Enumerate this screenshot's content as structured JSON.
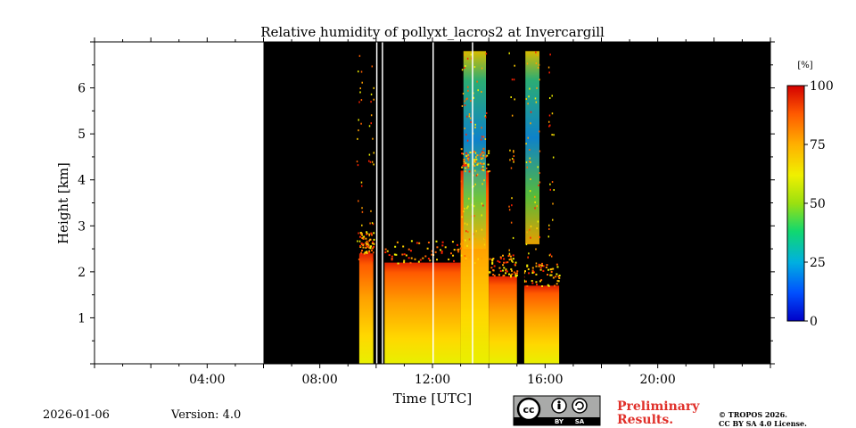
{
  "chart_data": {
    "type": "heatmap",
    "title": "Relative humidity of pollyxt_lacros2 at Invercargill",
    "xlabel": "Time [UTC]",
    "ylabel": "Height [km]",
    "xlim": [
      0,
      24
    ],
    "ylim": [
      0,
      7
    ],
    "x_ticks": [
      {
        "value": 4,
        "label": "04:00"
      },
      {
        "value": 8,
        "label": "08:00"
      },
      {
        "value": 12,
        "label": "12:00"
      },
      {
        "value": 16,
        "label": "16:00"
      },
      {
        "value": 20,
        "label": "20:00"
      }
    ],
    "y_ticks": [
      {
        "value": 1,
        "label": "1"
      },
      {
        "value": 2,
        "label": "2"
      },
      {
        "value": 3,
        "label": "3"
      },
      {
        "value": 4,
        "label": "4"
      },
      {
        "value": 5,
        "label": "5"
      },
      {
        "value": 6,
        "label": "6"
      }
    ],
    "colorbar": {
      "unit": "[%]",
      "range": [
        0,
        100
      ],
      "ticks": [
        {
          "value": 0,
          "label": "0"
        },
        {
          "value": 25,
          "label": "25"
        },
        {
          "value": 50,
          "label": "50"
        },
        {
          "value": 75,
          "label": "75"
        },
        {
          "value": 100,
          "label": "100"
        }
      ]
    },
    "no_data_interval": [
      0,
      6
    ],
    "no_signal_color": "#000000",
    "humidity_regions": [
      {
        "t_start": 9.4,
        "t_end": 9.9,
        "base_km": 0,
        "top_km": 2.4,
        "rh_low": 55,
        "rh_high": 85
      },
      {
        "t_start": 10.3,
        "t_end": 13.0,
        "base_km": 0,
        "top_km": 2.2,
        "rh_low": 55,
        "rh_high": 90
      },
      {
        "t_start": 13.0,
        "t_end": 14.0,
        "base_km": 0,
        "top_km": 4.2,
        "rh_low": 55,
        "rh_high": 95
      },
      {
        "t_start": 14.0,
        "t_end": 15.0,
        "base_km": 0,
        "top_km": 1.9,
        "rh_low": 55,
        "rh_high": 88
      },
      {
        "t_start": 15.2,
        "t_end": 16.5,
        "base_km": 0,
        "top_km": 1.7,
        "rh_low": 55,
        "rh_high": 92
      }
    ],
    "dry_plumes": [
      {
        "t_start": 13.1,
        "t_end": 13.9,
        "base_km": 2.5,
        "top_km": 6.8,
        "rh": 20
      },
      {
        "t_start": 15.3,
        "t_end": 15.8,
        "base_km": 2.6,
        "top_km": 6.8,
        "rh": 25
      }
    ],
    "gaps": [
      10.0,
      10.2,
      12.0,
      13.4,
      15.1
    ]
  },
  "footer": {
    "date": "2026-01-06",
    "version": "Version: 4.0",
    "preliminary_line1": "Preliminary",
    "preliminary_line2": "Results.",
    "copyright_line1": "© TROPOS 2026.",
    "copyright_line2": "CC BY SA 4.0 License.",
    "cc_badge": {
      "cc": "cc",
      "by": "BY",
      "sa": "SA"
    }
  },
  "colors": {
    "background": "#ffffff",
    "no_signal": "#000000",
    "preliminary_text": "#e0302a"
  }
}
